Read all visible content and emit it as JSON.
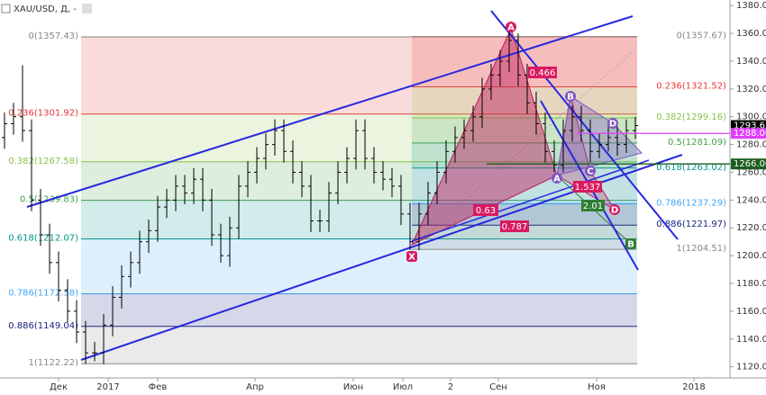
{
  "chart_data": {
    "type": "ohlc",
    "title": "XAU/USD, Д, -",
    "color": "#000000",
    "xlim": [
      -0.5,
      80.5
    ],
    "ylim": [
      1112,
      1384
    ],
    "xticks": [
      {
        "value": 6,
        "label": "Дек"
      },
      {
        "value": 11.5,
        "label": "2017"
      },
      {
        "value": 17,
        "label": "Фев"
      },
      {
        "value": 27.8,
        "label": "Апр"
      },
      {
        "value": 38.7,
        "label": "Июн"
      },
      {
        "value": 44.2,
        "label": "Июл"
      },
      {
        "value": 49.5,
        "label": "2"
      },
      {
        "value": 54.8,
        "label": "Сен"
      },
      {
        "value": 65.7,
        "label": "Ноя"
      },
      {
        "value": 76.5,
        "label": "2018"
      }
    ],
    "yticks": [
      {
        "value": 1120,
        "label": "1120.00"
      },
      {
        "value": 1140,
        "label": "1140.00"
      },
      {
        "value": 1160,
        "label": "1160.00"
      },
      {
        "value": 1180,
        "label": "1180.00"
      },
      {
        "value": 1200,
        "label": "1200.00"
      },
      {
        "value": 1220,
        "label": "1220.00"
      },
      {
        "value": 1240,
        "label": "1240.00"
      },
      {
        "value": 1260,
        "label": "1260.00"
      },
      {
        "value": 1280,
        "label": "1280.00"
      },
      {
        "value": 1300,
        "label": "1300.00"
      },
      {
        "value": 1320,
        "label": "1320.00"
      },
      {
        "value": 1340,
        "label": "1340.00"
      },
      {
        "value": 1360,
        "label": "1360.00"
      },
      {
        "value": 1380,
        "label": "1380.00"
      }
    ],
    "open": [
      1285,
      1295,
      1300,
      1290,
      1240,
      1215,
      1195,
      1175,
      1160,
      1145,
      1130,
      1130,
      1150,
      1170,
      1185,
      1195,
      1210,
      1218,
      1235,
      1240,
      1250,
      1245,
      1255,
      1240,
      1215,
      1200,
      1220,
      1250,
      1260,
      1270,
      1280,
      1290,
      1275,
      1260,
      1250,
      1225,
      1225,
      1245,
      1260,
      1270,
      1290,
      1270,
      1260,
      1255,
      1250,
      1230,
      1210,
      1230,
      1245,
      1260,
      1275,
      1285,
      1290,
      1300,
      1320,
      1330,
      1340,
      1355,
      1330,
      1310,
      1295,
      1275,
      1265,
      1290,
      1300,
      1290,
      1275,
      1280,
      1285,
      1280,
      1290
    ],
    "high": [
      1303,
      1310,
      1337,
      1298,
      1248,
      1223,
      1203,
      1183,
      1168,
      1153,
      1138,
      1158,
      1178,
      1193,
      1203,
      1218,
      1226,
      1243,
      1248,
      1258,
      1258,
      1263,
      1263,
      1248,
      1223,
      1228,
      1258,
      1268,
      1278,
      1288,
      1298,
      1298,
      1283,
      1268,
      1258,
      1233,
      1253,
      1268,
      1278,
      1298,
      1298,
      1278,
      1268,
      1263,
      1258,
      1238,
      1238,
      1253,
      1268,
      1283,
      1293,
      1298,
      1308,
      1328,
      1338,
      1348,
      1362,
      1360,
      1338,
      1318,
      1303,
      1283,
      1298,
      1308,
      1308,
      1298,
      1288,
      1293,
      1293,
      1298,
      1300
    ],
    "low": [
      1277,
      1287,
      1282,
      1232,
      1207,
      1187,
      1167,
      1152,
      1137,
      1122,
      1124,
      1122,
      1142,
      1162,
      1177,
      1187,
      1202,
      1210,
      1227,
      1232,
      1237,
      1237,
      1232,
      1207,
      1195,
      1192,
      1212,
      1242,
      1252,
      1262,
      1272,
      1267,
      1252,
      1242,
      1217,
      1217,
      1217,
      1237,
      1252,
      1262,
      1262,
      1252,
      1247,
      1242,
      1222,
      1204,
      1204,
      1222,
      1237,
      1252,
      1267,
      1277,
      1282,
      1292,
      1312,
      1322,
      1332,
      1322,
      1302,
      1287,
      1267,
      1260,
      1260,
      1282,
      1282,
      1267,
      1270,
      1275,
      1272,
      1274,
      1284
    ],
    "close": [
      1295,
      1300,
      1290,
      1240,
      1215,
      1195,
      1175,
      1160,
      1145,
      1130,
      1130,
      1150,
      1170,
      1185,
      1195,
      1210,
      1218,
      1235,
      1240,
      1250,
      1245,
      1255,
      1240,
      1215,
      1200,
      1220,
      1250,
      1260,
      1270,
      1280,
      1290,
      1275,
      1260,
      1250,
      1225,
      1225,
      1245,
      1260,
      1270,
      1290,
      1270,
      1260,
      1255,
      1250,
      1230,
      1210,
      1230,
      1245,
      1260,
      1275,
      1285,
      1290,
      1300,
      1320,
      1330,
      1340,
      1355,
      1330,
      1310,
      1295,
      1275,
      1265,
      1290,
      1300,
      1290,
      1275,
      1280,
      1285,
      1280,
      1290,
      1293.63
    ],
    "fib_left": [
      {
        "value": 1357.43,
        "label": "0(1357.43)",
        "color": "#888888"
      },
      {
        "value": 1301.92,
        "label": "0.236(1301.92)",
        "color": "#e53935"
      },
      {
        "value": 1267.58,
        "label": "0.382(1267.58)",
        "color": "#8bc34a"
      },
      {
        "value": 1239.83,
        "label": "0.5(1239.83)",
        "color": "#43a047"
      },
      {
        "value": 1212.07,
        "label": "0.618(1212.07)",
        "color": "#009688"
      },
      {
        "value": 1172.58,
        "label": "0.786(1172.58)",
        "color": "#42a5f5"
      },
      {
        "value": 1149.04,
        "label": "0.886(1149.04)",
        "color": "#1a237e"
      },
      {
        "value": 1122.22,
        "label": "1(1122.22)",
        "color": "#888888"
      }
    ],
    "fib_right": [
      {
        "value": 1357.67,
        "label": "0(1357.67)",
        "color": "#888888"
      },
      {
        "value": 1321.52,
        "label": "0.236(1321.52)",
        "color": "#e53935"
      },
      {
        "value": 1299.16,
        "label": "0.382(1299.16)",
        "color": "#8bc34a"
      },
      {
        "value": 1281.09,
        "label": "0.5(1281.09)",
        "color": "#43a047"
      },
      {
        "value": 1263.02,
        "label": "0.618(1263.02)",
        "color": "#009688"
      },
      {
        "value": 1237.29,
        "label": "0.786(1237.29)",
        "color": "#42a5f5"
      },
      {
        "value": 1221.97,
        "label": "0.886(1221.97)",
        "color": "#1a237e"
      },
      {
        "value": 1204.51,
        "label": "1(1204.51)",
        "color": "#888888"
      }
    ],
    "price_labels": [
      {
        "value": 1293.63,
        "label": "1293.63",
        "color": "#000000"
      },
      {
        "value": 1288,
        "label": "1288.00",
        "color": "#e040fb"
      },
      {
        "value": 1266,
        "label": "1266.00",
        "color": "#1b5e20"
      }
    ],
    "pattern_labels": [
      "X",
      "A",
      "B",
      "C",
      "D",
      "A",
      "D",
      "B"
    ],
    "ratio_labels": [
      "0.466",
      "0.63",
      "0.787",
      "1.537",
      "2.01"
    ]
  }
}
